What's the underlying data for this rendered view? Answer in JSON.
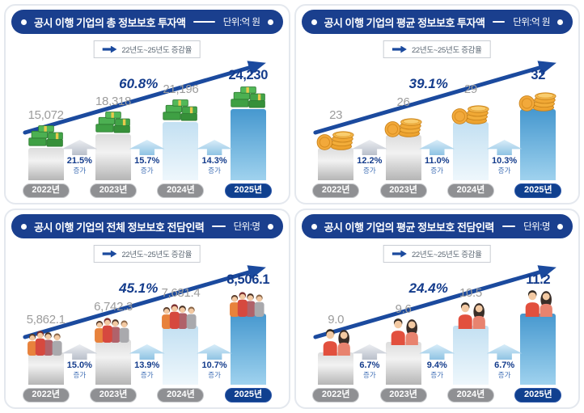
{
  "legend": {
    "text": "22년도~25년도 증감율"
  },
  "colors": {
    "header_bg": "#1a3f8e",
    "trend_arrow": "#1b4a9e",
    "accent_navy": "#143c8c",
    "value_gray": "#9c9c9c",
    "year_pill_gray": "#8f9093",
    "year_pill_navy": "#10408f",
    "bar_blue_top": "#4698cf",
    "bar_lightblue": "#c3e0f2"
  },
  "panels": [
    {
      "title": "공시 이행 기업의 총 정보보호 투자액",
      "unit": "단위:억 원",
      "trend_percent": "60.8%",
      "icon": "money-stack",
      "bars": [
        {
          "year": "2022년",
          "value": "15,072",
          "numeric": 15072
        },
        {
          "year": "2023년",
          "value": "18,318",
          "numeric": 18318
        },
        {
          "year": "2024년",
          "value": "21,196",
          "numeric": 21196
        },
        {
          "year": "2025년",
          "value": "24,230",
          "numeric": 24230
        }
      ],
      "growths": [
        {
          "percent": "21.5%",
          "label": "증가"
        },
        {
          "percent": "15.7%",
          "label": "증가"
        },
        {
          "percent": "14.3%",
          "label": "증가"
        }
      ]
    },
    {
      "title": "공시 이행 기업의 평균 정보보호 투자액",
      "unit": "단위:억 원",
      "trend_percent": "39.1%",
      "icon": "coin-stack",
      "bars": [
        {
          "year": "2022년",
          "value": "23",
          "numeric": 23
        },
        {
          "year": "2023년",
          "value": "26",
          "numeric": 26
        },
        {
          "year": "2024년",
          "value": "29",
          "numeric": 29
        },
        {
          "year": "2025년",
          "value": "32",
          "numeric": 32
        }
      ],
      "growths": [
        {
          "percent": "12.2%",
          "label": "증가"
        },
        {
          "percent": "11.0%",
          "label": "증가"
        },
        {
          "percent": "10.3%",
          "label": "증가"
        }
      ]
    },
    {
      "title": "공시 이행 기업의 전체 정보보호 전담인력",
      "unit": "단위:명",
      "trend_percent": "45.1%",
      "icon": "people-group",
      "bars": [
        {
          "year": "2022년",
          "value": "5,862.1",
          "numeric": 5862.1
        },
        {
          "year": "2023년",
          "value": "6,742.3",
          "numeric": 6742.3
        },
        {
          "year": "2024년",
          "value": "7,681.4",
          "numeric": 7681.4
        },
        {
          "year": "2025년",
          "value": "8,506.1",
          "numeric": 8506.1
        }
      ],
      "growths": [
        {
          "percent": "15.0%",
          "label": "증가"
        },
        {
          "percent": "13.9%",
          "label": "증가"
        },
        {
          "percent": "10.7%",
          "label": "증가"
        }
      ]
    },
    {
      "title": "공시 이행 기업의 평균 정보보호 전담인력",
      "unit": "단위:명",
      "trend_percent": "24.4%",
      "icon": "people-pair",
      "bars": [
        {
          "year": "2022년",
          "value": "9.0",
          "numeric": 9.0
        },
        {
          "year": "2023년",
          "value": "9.6",
          "numeric": 9.6
        },
        {
          "year": "2024년",
          "value": "10.5",
          "numeric": 10.5
        },
        {
          "year": "2025년",
          "value": "11.2",
          "numeric": 11.2
        }
      ],
      "growths": [
        {
          "percent": "6.7%",
          "label": "증가"
        },
        {
          "percent": "9.4%",
          "label": "증가"
        },
        {
          "percent": "6.7%",
          "label": "증가"
        }
      ]
    }
  ],
  "chart_data": [
    {
      "type": "bar",
      "title": "공시 이행 기업의 총 정보보호 투자액",
      "unit": "억 원",
      "categories": [
        "2022년",
        "2023년",
        "2024년",
        "2025년"
      ],
      "values": [
        15072,
        18318,
        21196,
        24230
      ],
      "yoy_growth_pct": [
        21.5,
        15.7,
        14.3
      ],
      "total_growth_pct_22_to_25": 60.8,
      "legend_note": "22년도~25년도 증감율",
      "highlight_category": "2025년"
    },
    {
      "type": "bar",
      "title": "공시 이행 기업의 평균 정보보호 투자액",
      "unit": "억 원",
      "categories": [
        "2022년",
        "2023년",
        "2024년",
        "2025년"
      ],
      "values": [
        23,
        26,
        29,
        32
      ],
      "yoy_growth_pct": [
        12.2,
        11.0,
        10.3
      ],
      "total_growth_pct_22_to_25": 39.1,
      "legend_note": "22년도~25년도 증감율",
      "highlight_category": "2025년"
    },
    {
      "type": "bar",
      "title": "공시 이행 기업의 전체 정보보호 전담인력",
      "unit": "명",
      "categories": [
        "2022년",
        "2023년",
        "2024년",
        "2025년"
      ],
      "values": [
        5862.1,
        6742.3,
        7681.4,
        8506.1
      ],
      "yoy_growth_pct": [
        15.0,
        13.9,
        10.7
      ],
      "total_growth_pct_22_to_25": 45.1,
      "legend_note": "22년도~25년도 증감율",
      "highlight_category": "2025년"
    },
    {
      "type": "bar",
      "title": "공시 이행 기업의 평균 정보보호 전담인력",
      "unit": "명",
      "categories": [
        "2022년",
        "2023년",
        "2024년",
        "2025년"
      ],
      "values": [
        9.0,
        9.6,
        10.5,
        11.2
      ],
      "yoy_growth_pct": [
        6.7,
        9.4,
        6.7
      ],
      "total_growth_pct_22_to_25": 24.4,
      "legend_note": "22년도~25년도 증감율",
      "highlight_category": "2025년"
    }
  ]
}
